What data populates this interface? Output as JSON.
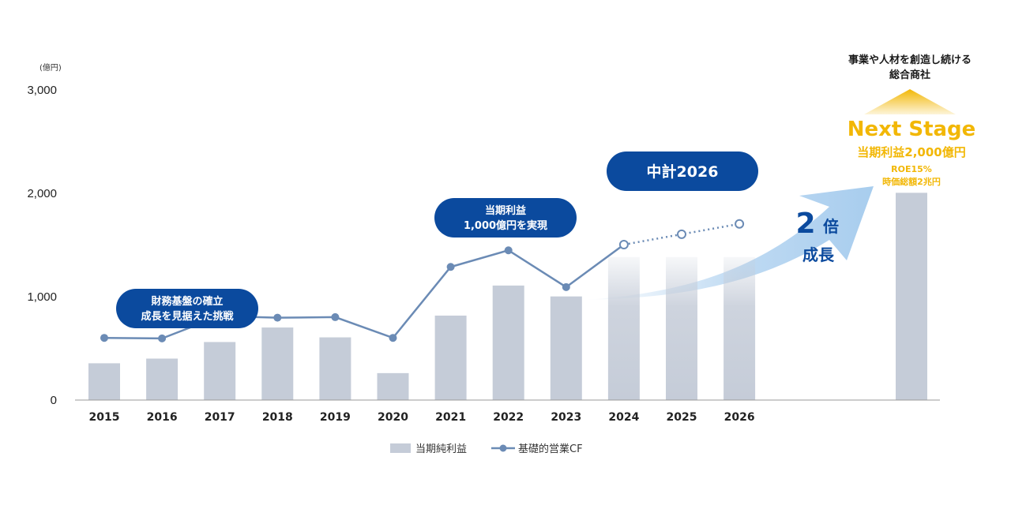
{
  "chart_data": {
    "type": "bar",
    "unit_label": "(億円)",
    "categories": [
      "2015",
      "2016",
      "2017",
      "2018",
      "2019",
      "2020",
      "2021",
      "2022",
      "2023",
      "2024",
      "2025",
      "2026"
    ],
    "y_ticks": [
      "0",
      "1,000",
      "2,000",
      "3,000"
    ],
    "ylim": [
      0,
      3000
    ],
    "series": [
      {
        "name": "当期純利益",
        "type": "bar",
        "color": "#c5ccd8",
        "values": [
          355,
          400,
          560,
          700,
          605,
          260,
          815,
          1105,
          1000,
          1380,
          1380,
          1380
        ],
        "faded_from_index": 9
      },
      {
        "name": "基礎的営業CF",
        "type": "line",
        "color": "#6b8bb5",
        "values": [
          600,
          595,
          810,
          795,
          800,
          600,
          1285,
          1445,
          1090,
          1500,
          1600,
          1700
        ],
        "open_markers_from_index": 9,
        "dotted_from_index": 9
      }
    ],
    "target_bar": {
      "value": 2000,
      "color": "#c5ccd8"
    },
    "callouts": {
      "phase1": [
        "財務基盤の確立",
        "成長を見据えた挑戦"
      ],
      "phase2": [
        "当期利益",
        "1,000億円を実現"
      ],
      "midterm": "中計2026"
    },
    "growth": {
      "multiplier": "2",
      "suffix": "倍",
      "label": "成長"
    },
    "next_stage": {
      "vision": [
        "事業や人材を創造し続ける",
        "総合商社"
      ],
      "title": "Next Stage",
      "profit": "当期利益2,000億円",
      "roe": "ROE15%",
      "market_cap": "時価総額2兆円"
    },
    "legend": [
      "当期純利益",
      "基礎的営業CF"
    ],
    "colors": {
      "bar": "#c5ccd8",
      "line": "#6b8bb5",
      "callout": "#0b4a9e",
      "gold": "#f2b705",
      "arrow": "#a8cdee"
    }
  }
}
